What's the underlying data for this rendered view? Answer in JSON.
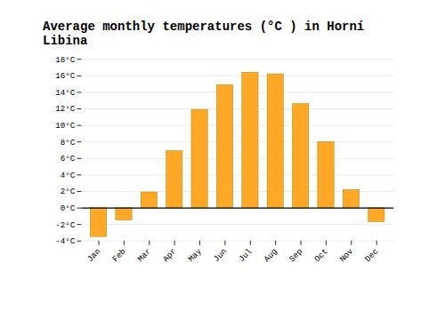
{
  "chart_data": {
    "type": "bar",
    "title": "Average monthly temperatures (°C ) in Horní Libina",
    "categories": [
      "Jan",
      "Feb",
      "Mar",
      "Apr",
      "May",
      "Jun",
      "Jul",
      "Aug",
      "Sep",
      "Oct",
      "Nov",
      "Dec"
    ],
    "values": [
      -3.5,
      -1.5,
      1.9,
      6.9,
      11.9,
      14.9,
      16.4,
      16.2,
      12.6,
      8.0,
      2.2,
      -1.7
    ],
    "color": "#FFA726",
    "ylim": [
      -4,
      18
    ],
    "yticks": [
      {
        "value": -4,
        "label": "-4°C"
      },
      {
        "value": -2,
        "label": "-2°C"
      },
      {
        "value": 0,
        "label": "0°C"
      },
      {
        "value": 2,
        "label": "2°C"
      },
      {
        "value": 4,
        "label": "4°C"
      },
      {
        "value": 6,
        "label": "6°C"
      },
      {
        "value": 8,
        "label": "8°C"
      },
      {
        "value": 10,
        "label": "10°C"
      },
      {
        "value": 12,
        "label": "12°C"
      },
      {
        "value": 14,
        "label": "14°C"
      },
      {
        "value": 16,
        "label": "16°C"
      },
      {
        "value": 18,
        "label": "18°C"
      }
    ],
    "grid": true
  }
}
